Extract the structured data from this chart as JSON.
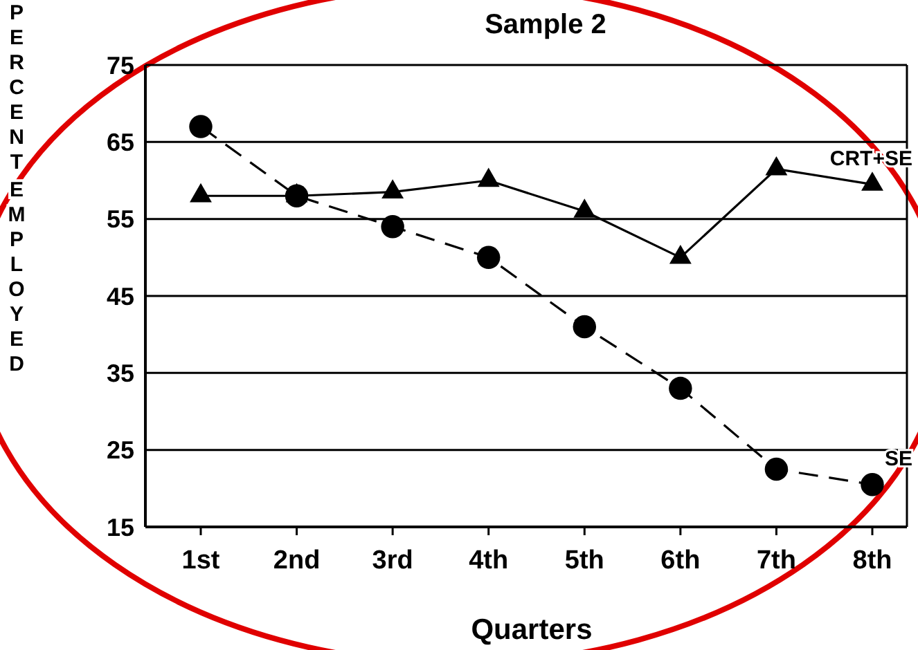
{
  "chart_data": {
    "type": "line",
    "title": "Sample 2",
    "xlabel": "Quarters",
    "ylabel": "PERCENT EMPLOYED",
    "categories": [
      "1st",
      "2nd",
      "3rd",
      "4th",
      "5th",
      "6th",
      "7th",
      "8th"
    ],
    "series": [
      {
        "name": "CRT+SE",
        "color": "#000000",
        "marker": "triangle",
        "line_style": "solid",
        "values": [
          58,
          58,
          58.5,
          60,
          56,
          50,
          61.5,
          59.5
        ]
      },
      {
        "name": "SE",
        "color": "#000000",
        "marker": "circle",
        "line_style": "dashed",
        "values": [
          67,
          58,
          54,
          50,
          41,
          33,
          22.5,
          20.5
        ]
      }
    ],
    "ylim": [
      15,
      75
    ],
    "yticks": [
      15,
      25,
      35,
      45,
      55,
      65,
      75
    ],
    "grid": "y"
  }
}
